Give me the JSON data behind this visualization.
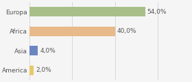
{
  "categories": [
    "Europa",
    "Africa",
    "Asia",
    "America"
  ],
  "values": [
    54.0,
    40.0,
    4.0,
    2.0
  ],
  "bar_colors": [
    "#a8bf8a",
    "#e8b98a",
    "#6b85c2",
    "#e8c96a"
  ],
  "labels": [
    "54,0%",
    "40,0%",
    "4,0%",
    "2,0%"
  ],
  "xlim": [
    0,
    75
  ],
  "background_color": "#f5f5f5",
  "bar_height": 0.5,
  "label_fontsize": 6.5,
  "tick_fontsize": 6.5,
  "grid_color": "#cccccc"
}
